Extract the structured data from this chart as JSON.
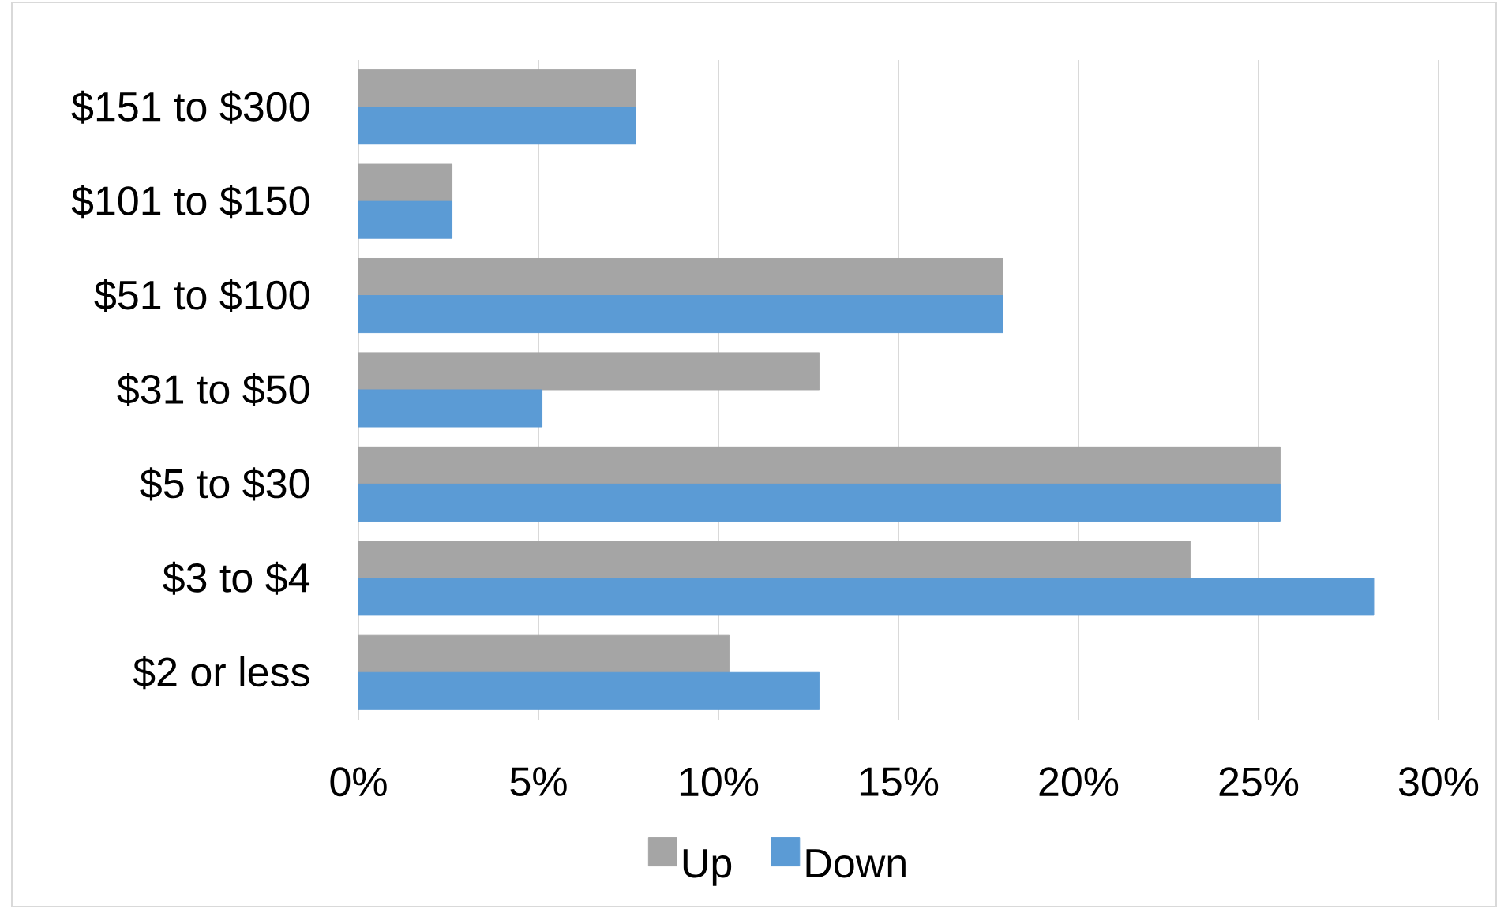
{
  "chart_data": {
    "type": "bar",
    "orientation": "horizontal",
    "categories": [
      "$151 to $300",
      "$101 to $150",
      "$51 to $100",
      "$31 to $50",
      "$5 to $30",
      "$3 to $4",
      "$2 or less"
    ],
    "series": [
      {
        "name": "Up",
        "color": "#a5a5a5",
        "values": [
          7.7,
          2.6,
          17.9,
          12.8,
          25.6,
          23.1,
          10.3
        ]
      },
      {
        "name": "Down",
        "color": "#5b9bd5",
        "values": [
          7.7,
          2.6,
          17.9,
          5.1,
          25.6,
          28.2,
          12.8
        ]
      }
    ],
    "xlim": [
      0,
      30
    ],
    "xticks": [
      {
        "value": 0,
        "label": "0%"
      },
      {
        "value": 5,
        "label": "5%"
      },
      {
        "value": 10,
        "label": "10%"
      },
      {
        "value": 15,
        "label": "15%"
      },
      {
        "value": 20,
        "label": "20%"
      },
      {
        "value": 25,
        "label": "25%"
      },
      {
        "value": 30,
        "label": "30%"
      }
    ],
    "grid": "x",
    "legend": "bottom"
  }
}
